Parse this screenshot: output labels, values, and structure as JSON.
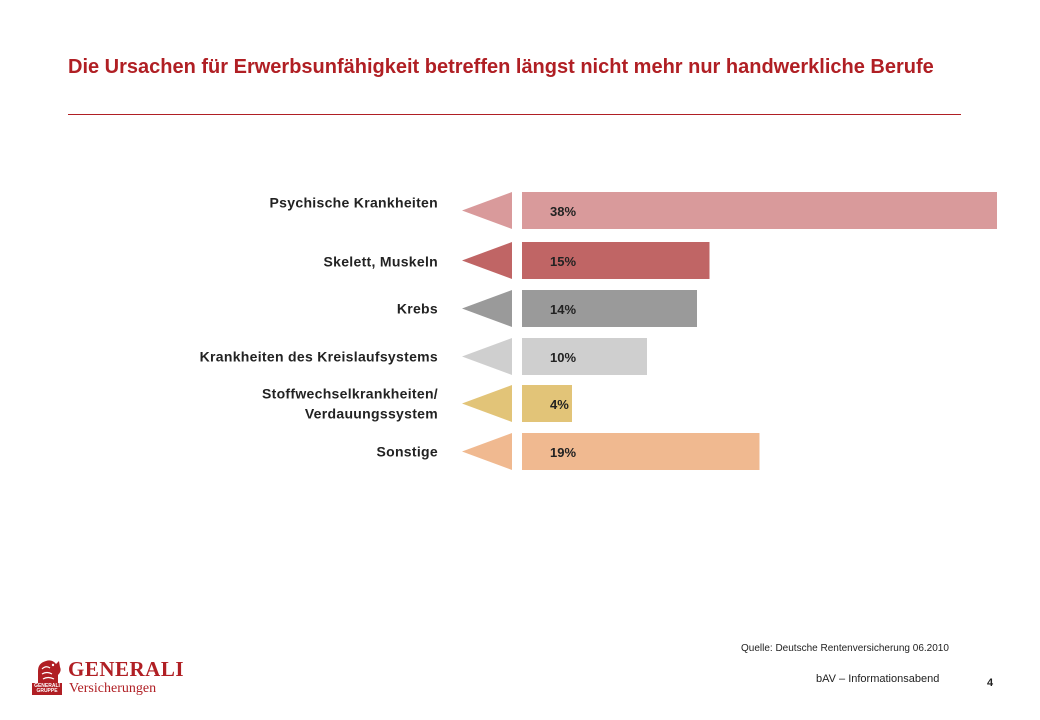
{
  "title": "Die Ursachen für Erwerbsunfähigkeit betreffen längst nicht mehr nur handwerkliche Berufe",
  "chart_data": {
    "type": "bar",
    "orientation": "horizontal",
    "title": "",
    "categories": [
      "Psychische  Krankheiten",
      "Skelett,  Muskeln",
      "Krebs",
      "Krankheiten  des  Kreislaufsystems",
      "Stoffwechselkrankheiten/ Verdauungssystem",
      "Sonstige"
    ],
    "category_lines": [
      [
        "Psychische  Krankheiten"
      ],
      [
        "Skelett,  Muskeln"
      ],
      [
        "Krebs"
      ],
      [
        "Krankheiten  des  Kreislaufsystems"
      ],
      [
        "Stoffwechselkrankheiten/",
        "Verdauungssystem"
      ],
      [
        "Sonstige"
      ]
    ],
    "values": [
      38,
      15,
      14,
      10,
      4,
      19
    ],
    "value_labels": [
      "38%",
      "15%",
      "14%",
      "10%",
      "4%",
      "19%"
    ],
    "colors": [
      "#d99a9b",
      "#c06565",
      "#9a9a9a",
      "#cfcfcf",
      "#e2c478",
      "#f0b990"
    ],
    "unit": "%",
    "xlim": [
      0,
      38
    ],
    "grid": false,
    "legend": "none"
  },
  "source": "Quelle: Deutsche Rentenversicherung 06.2010",
  "footer": "bAV – Informationsabend",
  "page_number": "4",
  "logo": {
    "brand": "GENERALI",
    "sub": "Versicherungen",
    "badge": "GENERALI GRUPPE"
  }
}
